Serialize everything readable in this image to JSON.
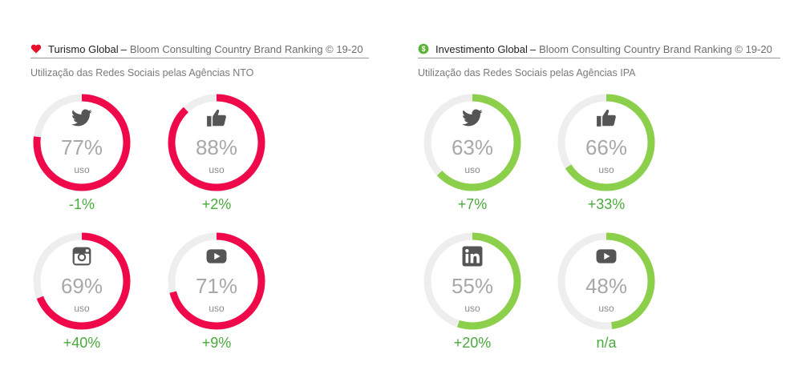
{
  "colors": {
    "tourism": "#f0094a",
    "investment": "#8bcf4b",
    "track": "#eeeeee",
    "delta": "#4aa93c"
  },
  "panels": [
    {
      "icon": "heart-icon",
      "title": "Turismo Global",
      "separator": "–",
      "subtitle": "Bloom Consulting Country Brand Ranking © 19-20",
      "caption": "Utilização das Redes Sociais pelas Agências NTO",
      "gauges": [
        {
          "network": "twitter-icon",
          "value": 77,
          "pct_label": "77%",
          "uso_label": "uso",
          "delta": "-1%"
        },
        {
          "network": "thumbs-up-icon",
          "value": 88,
          "pct_label": "88%",
          "uso_label": "uso",
          "delta": "+2%"
        },
        {
          "network": "instagram-icon",
          "value": 69,
          "pct_label": "69%",
          "uso_label": "uso",
          "delta": "+40%"
        },
        {
          "network": "youtube-icon",
          "value": 71,
          "pct_label": "71%",
          "uso_label": "uso",
          "delta": "+9%"
        }
      ]
    },
    {
      "icon": "dollar-coin-icon",
      "title": "Investimento Global",
      "separator": "–",
      "subtitle": "Bloom Consulting Country Brand Ranking © 19-20",
      "caption": "Utilização das Redes Sociais pelas Agências IPA",
      "gauges": [
        {
          "network": "twitter-icon",
          "value": 63,
          "pct_label": "63%",
          "uso_label": "uso",
          "delta": "+7%"
        },
        {
          "network": "thumbs-up-icon",
          "value": 66,
          "pct_label": "66%",
          "uso_label": "uso",
          "delta": "+33%"
        },
        {
          "network": "linkedin-icon",
          "value": 55,
          "pct_label": "55%",
          "uso_label": "uso",
          "delta": "+20%"
        },
        {
          "network": "youtube-icon",
          "value": 48,
          "pct_label": "48%",
          "uso_label": "uso",
          "delta": "n/a"
        }
      ]
    }
  ]
}
